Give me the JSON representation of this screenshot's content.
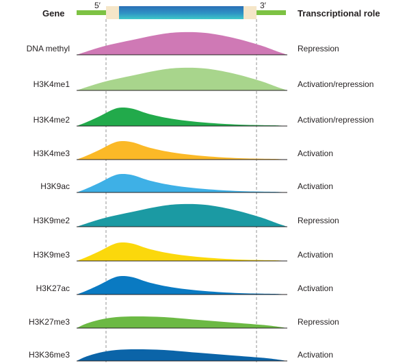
{
  "header": {
    "gene_label": "Gene",
    "role_label": "Transcriptional role",
    "five_prime": "5′",
    "three_prime": "3′"
  },
  "colors": {
    "gene_flank": "#7dc243",
    "gene_utr": "#f5e6c8",
    "gene_body_top": "#2a7ab8",
    "gene_body_bottom": "#35c0c8",
    "baseline": "#231f20",
    "guide": "#888888"
  },
  "tracks": [
    {
      "name": "DNA methyl",
      "role": "Repression",
      "color": "#cf79b5",
      "profile": "broad-center"
    },
    {
      "name": "H3K4me1",
      "role": "Activation/repression",
      "color": "#a8d58c",
      "profile": "broad-center"
    },
    {
      "name": "H3K4me2",
      "role": "Activation/repression",
      "color": "#22aa4b",
      "profile": "tss-peak"
    },
    {
      "name": "H3K4me3",
      "role": "Activation",
      "color": "#fbb927",
      "profile": "tss-peak"
    },
    {
      "name": "H3K9ac",
      "role": "Activation",
      "color": "#3eb0e6",
      "profile": "tss-peak"
    },
    {
      "name": "H3K9me2",
      "role": "Repression",
      "color": "#1b9aa3",
      "profile": "broad-center"
    },
    {
      "name": "H3K9me3",
      "role": "Activation",
      "color": "#fbd80c",
      "profile": "tss-peak"
    },
    {
      "name": "H3K27ac",
      "role": "Activation",
      "color": "#0a7ac2",
      "profile": "tss-peak"
    },
    {
      "name": "H3K27me3",
      "role": "Repression",
      "color": "#6cb944",
      "profile": "broad-early"
    },
    {
      "name": "H3K36me3",
      "role": "Activation",
      "color": "#0b64a8",
      "profile": "broad-early"
    }
  ]
}
